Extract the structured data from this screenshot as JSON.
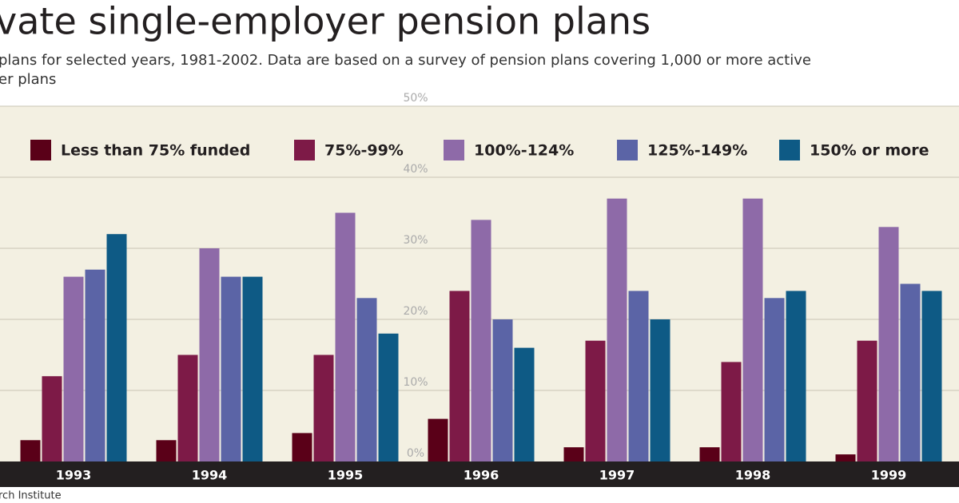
{
  "chart_data": {
    "type": "bar",
    "title": "vate single-employer pension plans",
    "subtitle": [
      "plans for selected years, 1981-2002. Data are based on a survey of pension plans covering 1,000 or more active",
      "er plans"
    ],
    "source": "rch Institute",
    "categories": [
      "1993",
      "1994",
      "1995",
      "1996",
      "1997",
      "1998",
      "1999"
    ],
    "series": [
      {
        "name": "Less than 75% funded",
        "color": "#5a0018",
        "values": [
          3,
          3,
          4,
          6,
          2,
          2,
          1
        ]
      },
      {
        "name": "75%-99%",
        "color": "#7d1a47",
        "values": [
          12,
          15,
          15,
          24,
          17,
          14,
          17
        ]
      },
      {
        "name": "100%-124%",
        "color": "#8e6aa8",
        "values": [
          26,
          30,
          35,
          34,
          37,
          37,
          33
        ]
      },
      {
        "name": "125%-149%",
        "color": "#5b64a6",
        "values": [
          27,
          26,
          23,
          20,
          24,
          23,
          25
        ]
      },
      {
        "name": "150% or more",
        "color": "#0e5a85",
        "values": [
          32,
          26,
          18,
          16,
          20,
          24,
          24
        ]
      }
    ],
    "ylim": [
      0,
      50
    ],
    "yticks": [
      {
        "value": 0,
        "label": "0%"
      },
      {
        "value": 10,
        "label": "10%"
      },
      {
        "value": 20,
        "label": "20%"
      },
      {
        "value": 30,
        "label": "30%"
      },
      {
        "value": 40,
        "label": "40%"
      },
      {
        "value": 50,
        "label": "50%"
      }
    ],
    "grid": true
  }
}
